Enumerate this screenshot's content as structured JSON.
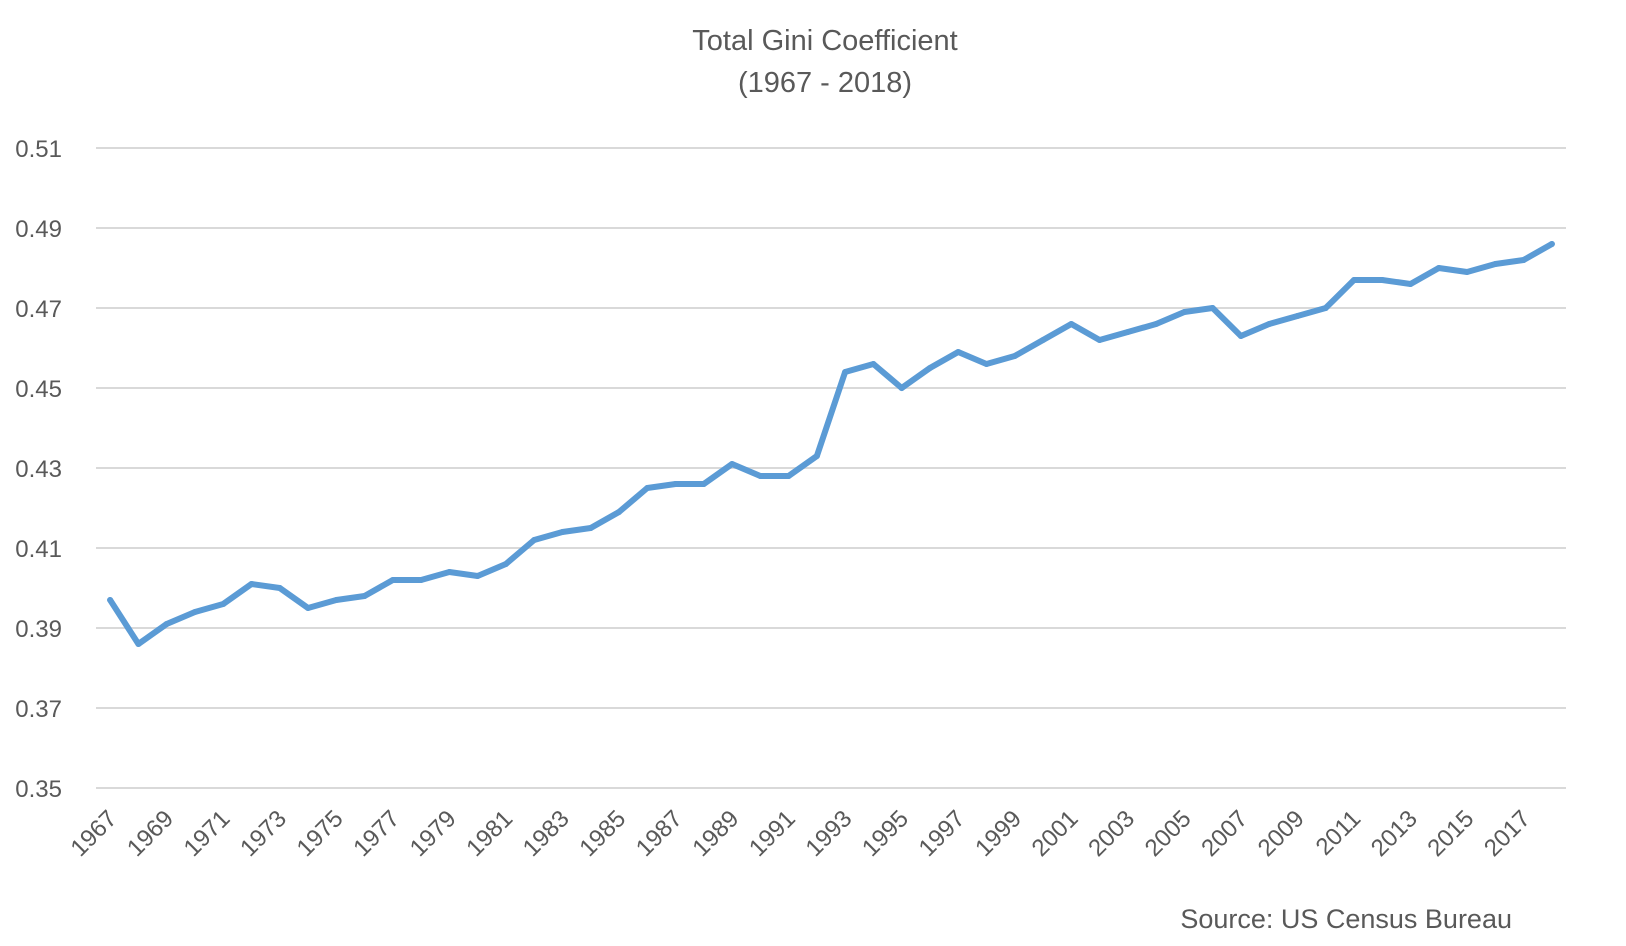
{
  "chart_data": {
    "type": "line",
    "title": "Total Gini Coefficient",
    "subtitle": "(1967 - 2018)",
    "xlabel": "",
    "ylabel": "",
    "ylim": [
      0.35,
      0.51
    ],
    "yticks": [
      0.35,
      0.37,
      0.39,
      0.41,
      0.43,
      0.45,
      0.47,
      0.49,
      0.51
    ],
    "ytick_labels": [
      "0.35",
      "0.37",
      "0.39",
      "0.41",
      "0.43",
      "0.45",
      "0.47",
      "0.49",
      "0.51"
    ],
    "xtick_labels": [
      "1967",
      "1969",
      "1971",
      "1973",
      "1975",
      "1977",
      "1979",
      "1981",
      "1983",
      "1985",
      "1987",
      "1989",
      "1991",
      "1993",
      "1995",
      "1997",
      "1999",
      "2001",
      "2003",
      "2005",
      "2007",
      "2009",
      "2011",
      "2013",
      "2015",
      "2017"
    ],
    "grid": true,
    "legend": "none",
    "x": [
      1967,
      1968,
      1969,
      1970,
      1971,
      1972,
      1973,
      1974,
      1975,
      1976,
      1977,
      1978,
      1979,
      1980,
      1981,
      1982,
      1983,
      1984,
      1985,
      1986,
      1987,
      1988,
      1989,
      1990,
      1991,
      1992,
      1993,
      1994,
      1995,
      1996,
      1997,
      1998,
      1999,
      2000,
      2001,
      2002,
      2003,
      2004,
      2005,
      2006,
      2007,
      2008,
      2009,
      2010,
      2011,
      2012,
      2013,
      2014,
      2015,
      2016,
      2017,
      2018
    ],
    "series": [
      {
        "color": "#5b9bd5",
        "values": [
          0.397,
          0.386,
          0.391,
          0.394,
          0.396,
          0.401,
          0.4,
          0.395,
          0.397,
          0.398,
          0.402,
          0.402,
          0.404,
          0.403,
          0.406,
          0.412,
          0.414,
          0.415,
          0.419,
          0.425,
          0.426,
          0.426,
          0.431,
          0.428,
          0.428,
          0.433,
          0.454,
          0.456,
          0.45,
          0.455,
          0.459,
          0.456,
          0.458,
          0.462,
          0.466,
          0.462,
          0.464,
          0.466,
          0.469,
          0.47,
          0.463,
          0.466,
          0.468,
          0.47,
          0.477,
          0.477,
          0.476,
          0.48,
          0.479,
          0.481,
          0.482,
          0.486
        ]
      }
    ],
    "source": "Source: US Census Bureau"
  }
}
